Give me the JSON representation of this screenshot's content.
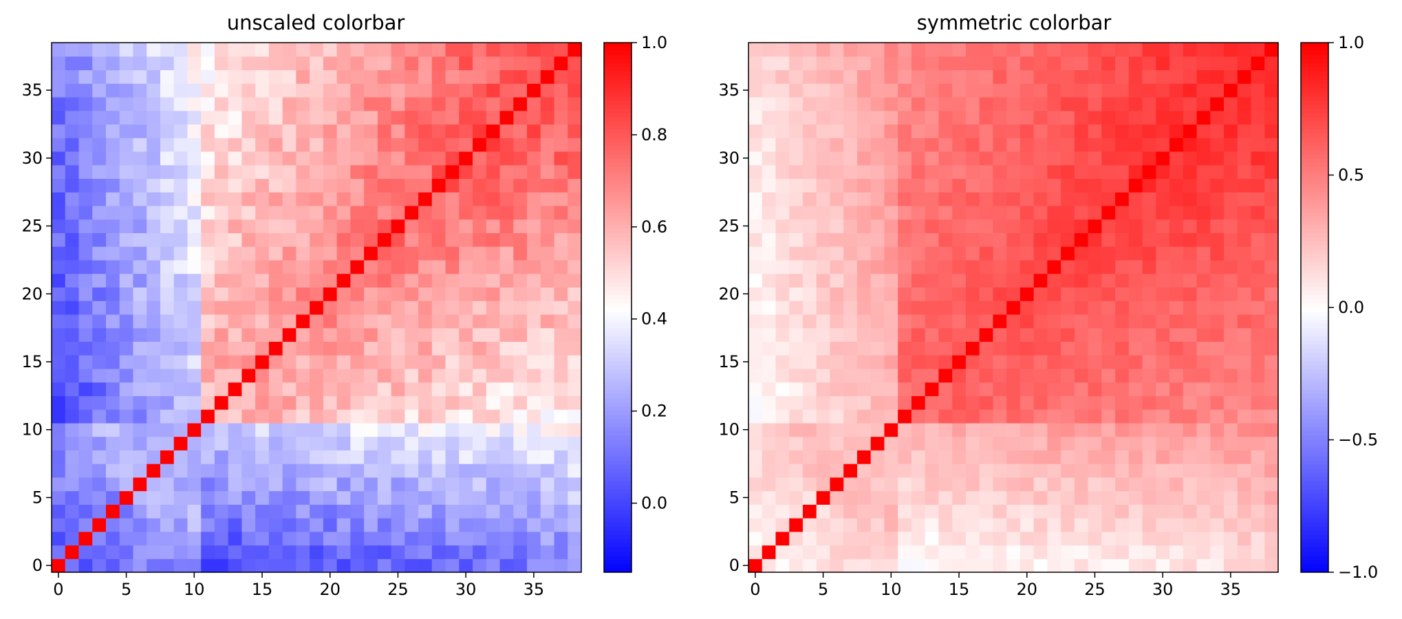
{
  "chart_data": [
    {
      "type": "heatmap",
      "title": "unscaled colorbar",
      "colormap": "bwr",
      "grid": false,
      "n": 39,
      "x_range": [
        -0.5,
        38.5
      ],
      "y_range": [
        -0.5,
        38.5
      ],
      "x_ticks": [
        0,
        5,
        10,
        15,
        20,
        25,
        30,
        35
      ],
      "y_ticks": [
        0,
        5,
        10,
        15,
        20,
        25,
        30,
        35
      ],
      "x_tick_labels": [
        "0",
        "5",
        "10",
        "15",
        "20",
        "25",
        "30",
        "35"
      ],
      "y_tick_labels": [
        "0",
        "5",
        "10",
        "15",
        "20",
        "25",
        "30",
        "35"
      ],
      "clim": [
        -0.15,
        1.0
      ],
      "colorbar_ticks": [
        0.0,
        0.2,
        0.4,
        0.6,
        0.8,
        1.0
      ],
      "colorbar_tick_labels": [
        "0.0",
        "0.2",
        "0.4",
        "0.6",
        "0.8",
        "1.0"
      ],
      "description": "39x39 correlation matrix with diagonal = 1.0; indices 0-10 weakly correlated (about -0.1 to 0.3), indices 11-38 increasingly correlated (about 0.5-0.95 near the upper-right)"
    },
    {
      "type": "heatmap",
      "title": "symmetric colorbar",
      "colormap": "bwr",
      "grid": false,
      "n": 39,
      "x_range": [
        -0.5,
        38.5
      ],
      "y_range": [
        -0.5,
        38.5
      ],
      "x_ticks": [
        0,
        5,
        10,
        15,
        20,
        25,
        30,
        35
      ],
      "y_ticks": [
        0,
        5,
        10,
        15,
        20,
        25,
        30,
        35
      ],
      "x_tick_labels": [
        "0",
        "5",
        "10",
        "15",
        "20",
        "25",
        "30",
        "35"
      ],
      "y_tick_labels": [
        "0",
        "5",
        "10",
        "15",
        "20",
        "25",
        "30",
        "35"
      ],
      "clim": [
        -1.0,
        1.0
      ],
      "colorbar_ticks": [
        -1.0,
        -0.5,
        0.0,
        0.5,
        1.0
      ],
      "colorbar_tick_labels": [
        "−1.0",
        "−0.5",
        "0.0",
        "0.5",
        "1.0"
      ],
      "description": "Same 39x39 matrix shown with a colour scale symmetric about zero"
    }
  ]
}
